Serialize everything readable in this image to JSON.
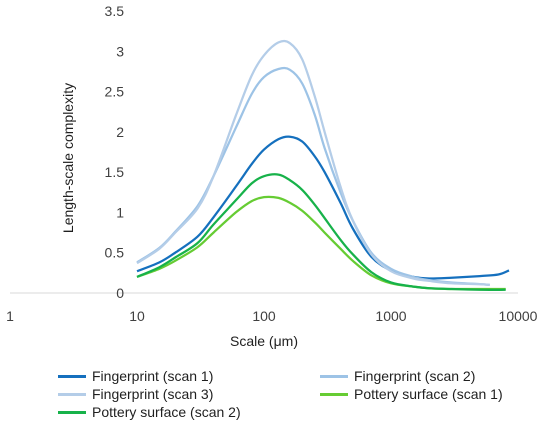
{
  "chart_data": {
    "type": "line",
    "xlabel": "Scale (μm)",
    "ylabel": "Length-scale complexity",
    "x_scale": "log",
    "xlim": [
      1,
      10000
    ],
    "ylim": [
      0,
      3.5
    ],
    "x_ticks": [
      1,
      10,
      100,
      1000,
      10000
    ],
    "x_tick_labels": [
      "1",
      "10",
      "100",
      "1000",
      "10000"
    ],
    "y_ticks": [
      0,
      0.5,
      1,
      1.5,
      2,
      2.5,
      3,
      3.5
    ],
    "y_tick_labels": [
      "0",
      "0.5",
      "1",
      "1.5",
      "2",
      "2.5",
      "3",
      "3.5"
    ],
    "grid": false,
    "legend_position": "bottom",
    "series": [
      {
        "name": "Fingerprint (scan 1)",
        "color": "#1570be",
        "x": [
          10,
          15,
          20,
          30,
          40,
          60,
          80,
          100,
          130,
          160,
          200,
          250,
          300,
          400,
          500,
          700,
          1000,
          1500,
          2000,
          3000,
          5000,
          7000,
          8500
        ],
        "y": [
          0.27,
          0.38,
          0.5,
          0.7,
          0.94,
          1.32,
          1.6,
          1.78,
          1.91,
          1.94,
          1.88,
          1.7,
          1.5,
          1.12,
          0.8,
          0.45,
          0.28,
          0.2,
          0.18,
          0.19,
          0.21,
          0.23,
          0.28
        ]
      },
      {
        "name": "Fingerprint (scan 2)",
        "color": "#9dc3e6",
        "x": [
          10,
          15,
          20,
          30,
          40,
          60,
          80,
          100,
          130,
          160,
          200,
          250,
          300,
          400,
          500,
          700,
          1000,
          1500,
          2000,
          3000,
          5000,
          6000
        ],
        "y": [
          0.38,
          0.56,
          0.76,
          1.08,
          1.45,
          2.05,
          2.47,
          2.68,
          2.78,
          2.77,
          2.6,
          2.22,
          1.8,
          1.25,
          0.9,
          0.5,
          0.3,
          0.2,
          0.16,
          0.13,
          0.11,
          0.1
        ]
      },
      {
        "name": "Fingerprint (scan 3)",
        "color": "#b4cde8",
        "x": [
          10,
          15,
          20,
          30,
          40,
          60,
          80,
          100,
          130,
          160,
          200,
          250,
          300,
          400,
          500,
          700,
          1000,
          1500,
          2000,
          3000,
          5000,
          6000
        ],
        "y": [
          0.37,
          0.55,
          0.75,
          1.05,
          1.45,
          2.2,
          2.7,
          2.95,
          3.11,
          3.1,
          2.9,
          2.45,
          2.0,
          1.32,
          0.9,
          0.48,
          0.27,
          0.18,
          0.15,
          0.12,
          0.11,
          0.1
        ]
      },
      {
        "name": "Pottery surface (scan 1)",
        "color": "#66cc33",
        "x": [
          10,
          15,
          20,
          30,
          40,
          60,
          80,
          100,
          130,
          160,
          200,
          250,
          300,
          400,
          500,
          700,
          1000,
          1500,
          2000,
          3000,
          5000,
          8000
        ],
        "y": [
          0.2,
          0.3,
          0.4,
          0.57,
          0.75,
          1.0,
          1.14,
          1.19,
          1.18,
          1.12,
          1.02,
          0.88,
          0.75,
          0.55,
          0.4,
          0.22,
          0.12,
          0.08,
          0.06,
          0.05,
          0.05,
          0.05
        ]
      },
      {
        "name": "Pottery surface (scan 2)",
        "color": "#17b24a",
        "x": [
          10,
          15,
          20,
          30,
          40,
          60,
          80,
          100,
          130,
          160,
          200,
          250,
          300,
          400,
          500,
          700,
          1000,
          1500,
          2000,
          3000,
          5000,
          8000
        ],
        "y": [
          0.2,
          0.32,
          0.44,
          0.62,
          0.85,
          1.15,
          1.36,
          1.45,
          1.47,
          1.4,
          1.28,
          1.1,
          0.93,
          0.66,
          0.48,
          0.26,
          0.13,
          0.08,
          0.06,
          0.05,
          0.04,
          0.04
        ]
      }
    ]
  }
}
